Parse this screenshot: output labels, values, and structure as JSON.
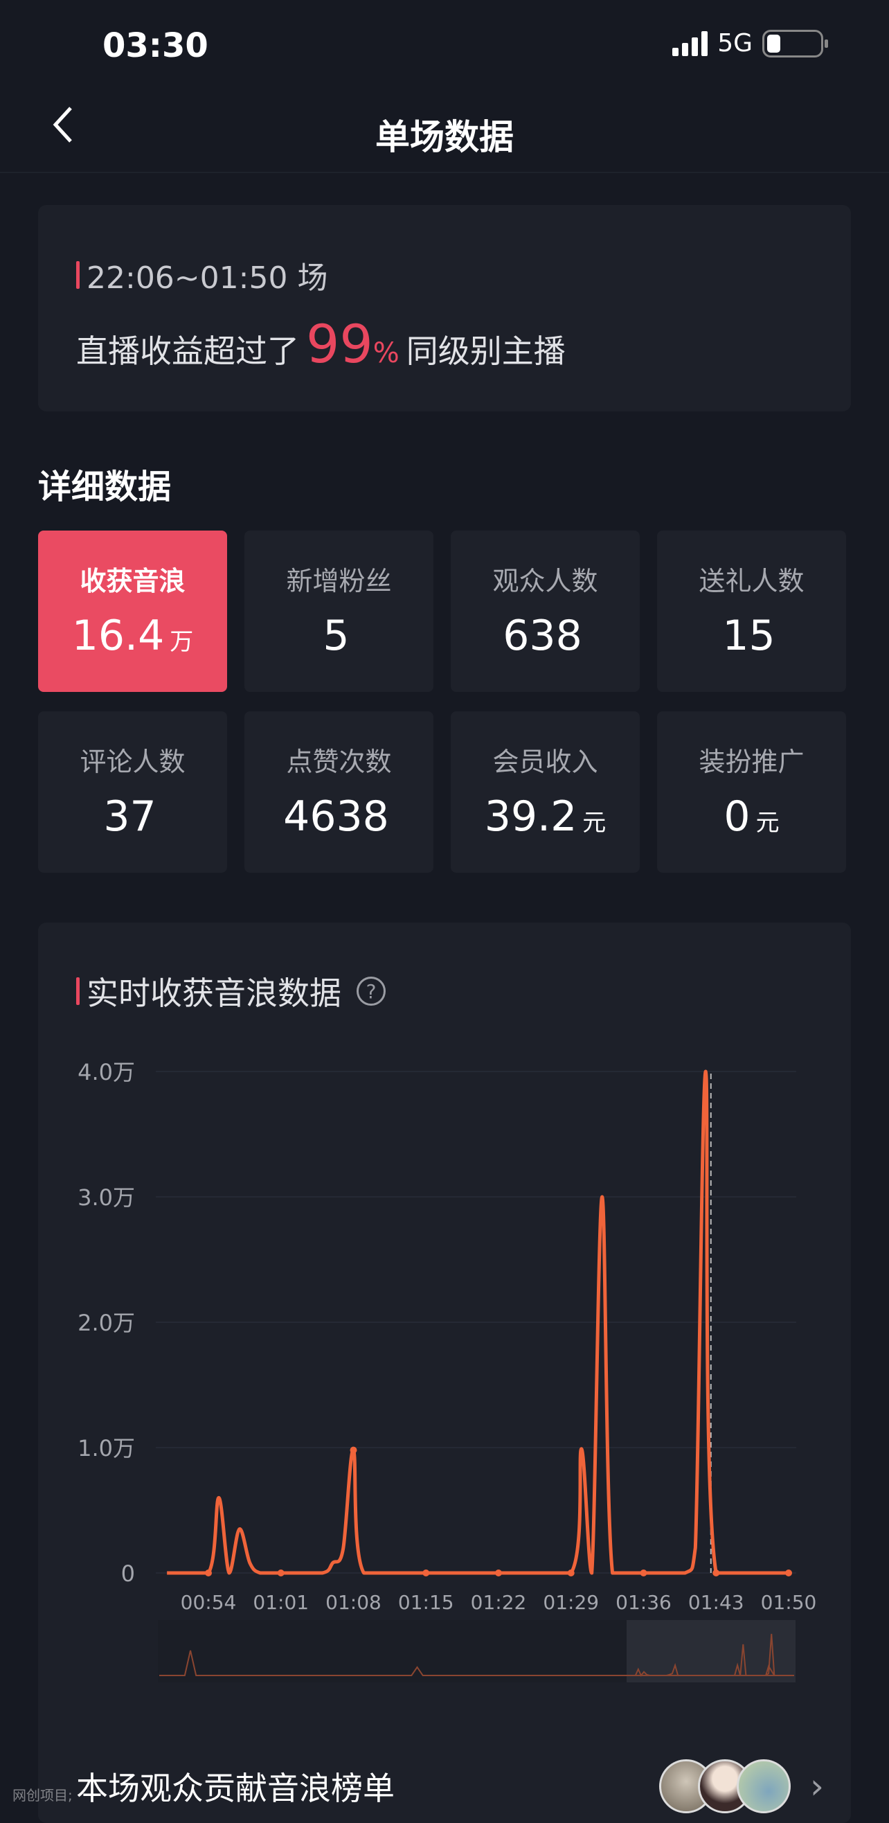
{
  "status_bar": {
    "time": "03:30",
    "network": "5G",
    "battery_level": 0.25
  },
  "nav": {
    "back_icon": "chevron-left-icon",
    "title": "单场数据"
  },
  "summary": {
    "session": "22:06~01:50 场",
    "rank_prefix": "直播收益超过了",
    "rank_percent": "99",
    "rank_percent_sign": "%",
    "rank_suffix": "同级别主播"
  },
  "details": {
    "title": "详细数据",
    "tiles": [
      {
        "label": "收获音浪",
        "value": "16.4",
        "unit": "万",
        "active": true
      },
      {
        "label": "新增粉丝",
        "value": "5",
        "unit": ""
      },
      {
        "label": "观众人数",
        "value": "638",
        "unit": ""
      },
      {
        "label": "送礼人数",
        "value": "15",
        "unit": ""
      },
      {
        "label": "评论人数",
        "value": "37",
        "unit": ""
      },
      {
        "label": "点赞次数",
        "value": "4638",
        "unit": ""
      },
      {
        "label": "会员收入",
        "value": "39.2",
        "unit": "元"
      },
      {
        "label": "装扮推广",
        "value": "0",
        "unit": "元"
      }
    ]
  },
  "realtime": {
    "title": "实时收获音浪数据",
    "help_icon": "question-circle-icon"
  },
  "chart_data": {
    "type": "line",
    "title": "实时收获音浪数据",
    "xlabel": "",
    "ylabel": "",
    "x_ticks": [
      "00:54",
      "01:01",
      "01:08",
      "01:15",
      "01:22",
      "01:29",
      "01:36",
      "01:43",
      "01:50"
    ],
    "y_ticks": [
      {
        "value": 0,
        "label": "0"
      },
      {
        "value": 10000,
        "label": "1.0万"
      },
      {
        "value": 20000,
        "label": "2.0万"
      },
      {
        "value": 30000,
        "label": "3.0万"
      },
      {
        "value": 40000,
        "label": "4.0万"
      }
    ],
    "ylim": [
      0,
      40000
    ],
    "grid": true,
    "line_color": "#f0643a",
    "series": [
      {
        "points": [
          [
            "00:50",
            0
          ],
          [
            "00:54",
            0
          ],
          [
            "00:55",
            6000
          ],
          [
            "00:56",
            0
          ],
          [
            "00:57",
            3500
          ],
          [
            "00:58",
            800
          ],
          [
            "00:59",
            0
          ],
          [
            "01:01",
            0
          ],
          [
            "01:05",
            0
          ],
          [
            "01:06",
            800
          ],
          [
            "01:07",
            1900
          ],
          [
            "01:08",
            9800
          ],
          [
            "01:09",
            0
          ],
          [
            "01:15",
            0
          ],
          [
            "01:22",
            0
          ],
          [
            "01:29",
            0
          ],
          [
            "01:30",
            9900
          ],
          [
            "01:31",
            0
          ],
          [
            "01:32",
            30000
          ],
          [
            "01:33",
            0
          ],
          [
            "01:36",
            0
          ],
          [
            "01:40",
            0
          ],
          [
            "01:41",
            2000
          ],
          [
            "01:42",
            40000
          ],
          [
            "01:43",
            0
          ],
          [
            "01:50",
            0
          ]
        ]
      }
    ],
    "highlight_time": "01:42"
  },
  "leaderboard": {
    "label": "本场观众贡献音浪榜单",
    "chevron_icon": "chevron-right-icon"
  },
  "watermark": "网创项目;"
}
